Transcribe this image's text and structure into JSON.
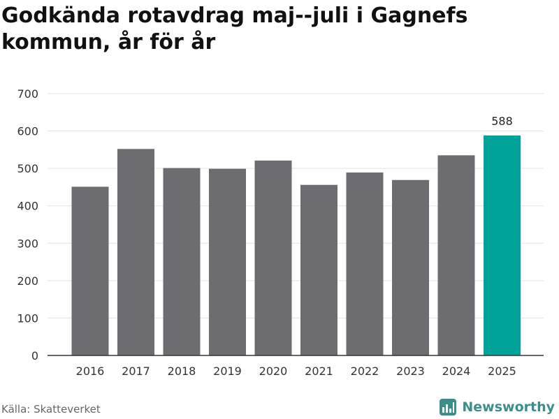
{
  "title": "Godkända rotavdrag maj--juli i Gagnefs kommun, år för år",
  "source": "Källa: Skatteverket",
  "brand": {
    "name": "Newsworthy",
    "icon": "newsworthy-logo-icon",
    "color": "#3a8f8b"
  },
  "colors": {
    "bar": "#6d6c71",
    "highlight": "#00a39a",
    "grid": "#e3e3e3",
    "axis": "#333333"
  },
  "chart_data": {
    "type": "bar",
    "title": "Godkända rotavdrag maj--juli i Gagnefs kommun, år för år",
    "xlabel": "",
    "ylabel": "",
    "categories": [
      "2016",
      "2017",
      "2018",
      "2019",
      "2020",
      "2021",
      "2022",
      "2023",
      "2024",
      "2025"
    ],
    "values": [
      451,
      552,
      501,
      499,
      521,
      456,
      489,
      469,
      535,
      588
    ],
    "ylim": [
      0,
      700
    ],
    "yticks": [
      0,
      100,
      200,
      300,
      400,
      500,
      600,
      700
    ],
    "highlight_index": 9,
    "data_labels": [
      {
        "index": 9,
        "text": "588"
      }
    ],
    "grid": true,
    "legend": "none"
  }
}
